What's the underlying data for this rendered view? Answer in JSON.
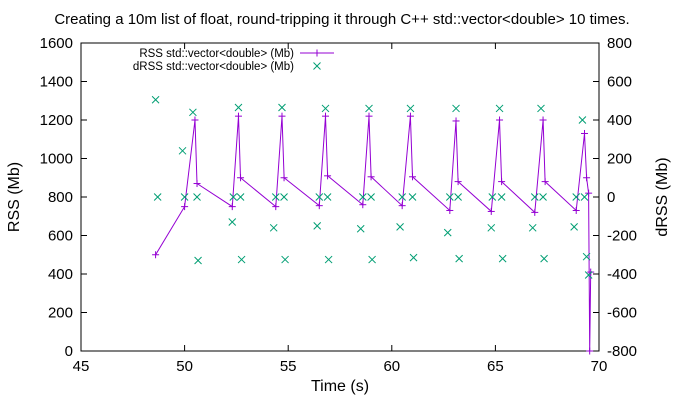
{
  "chart_data": {
    "type": "line",
    "title": "Creating a 10m list of float, round-tripping it through C++ std::vector<double> 10 times.",
    "xlabel": "Time (s)",
    "ylabel": "RSS (Mb)",
    "y2label": "dRSS (Mb)",
    "xlim": [
      45,
      70
    ],
    "ylim": [
      0,
      1600
    ],
    "y2lim": [
      -800,
      800
    ],
    "xticks": [
      "45",
      "50",
      "55",
      "60",
      "65",
      "70"
    ],
    "yticks": [
      "0",
      "200",
      "400",
      "600",
      "800",
      "1000",
      "1200",
      "1400",
      "1600"
    ],
    "y2ticks": [
      "-800",
      "-600",
      "-400",
      "-200",
      "0",
      "200",
      "400",
      "600",
      "800"
    ],
    "grid": false,
    "legend_position": "top-center",
    "series": [
      {
        "name": "RSS std::vector<double> (Mb)",
        "axis": "y",
        "style": "linespoints",
        "marker": "plus",
        "color": "#9400d3",
        "x": [
          48.6,
          50.0,
          50.5,
          50.6,
          52.3,
          52.6,
          52.7,
          54.4,
          54.7,
          54.8,
          56.5,
          56.8,
          56.9,
          58.6,
          58.9,
          59.0,
          60.5,
          60.9,
          61.0,
          62.8,
          63.1,
          63.2,
          64.8,
          65.2,
          65.3,
          66.9,
          67.3,
          67.4,
          68.9,
          69.3,
          69.4,
          69.5,
          69.55,
          69.6
        ],
        "y": [
          500,
          750,
          1200,
          870,
          750,
          1220,
          900,
          750,
          1220,
          900,
          755,
          1220,
          910,
          760,
          1220,
          905,
          755,
          1220,
          905,
          730,
          1195,
          880,
          725,
          1200,
          880,
          720,
          1200,
          880,
          730,
          1130,
          900,
          820,
          0,
          410
        ]
      },
      {
        "name": "dRSS std::vector<double> (Mb)",
        "axis": "y2",
        "style": "points",
        "marker": "cross",
        "color": "#009e73",
        "x": [
          48.6,
          48.7,
          49.9,
          50.0,
          50.4,
          50.6,
          50.65,
          52.3,
          52.35,
          52.6,
          52.7,
          52.75,
          54.3,
          54.4,
          54.7,
          54.8,
          54.85,
          56.4,
          56.5,
          56.8,
          56.9,
          56.95,
          58.5,
          58.6,
          58.9,
          59.0,
          59.05,
          60.4,
          60.5,
          60.9,
          61.0,
          61.05,
          62.7,
          62.8,
          63.1,
          63.2,
          63.25,
          64.8,
          64.85,
          65.2,
          65.3,
          65.35,
          66.8,
          66.9,
          67.2,
          67.3,
          67.35,
          68.8,
          68.9,
          69.2,
          69.3,
          69.4,
          69.5
        ],
        "y": [
          505,
          0,
          240,
          0,
          440,
          0,
          -330,
          -130,
          0,
          465,
          0,
          -325,
          -160,
          0,
          465,
          0,
          -325,
          -150,
          0,
          460,
          0,
          -325,
          -165,
          0,
          460,
          0,
          -325,
          -155,
          0,
          460,
          0,
          -315,
          -185,
          0,
          460,
          0,
          -320,
          -160,
          0,
          460,
          0,
          -320,
          -160,
          0,
          460,
          0,
          -320,
          -155,
          0,
          400,
          0,
          -310,
          -405
        ]
      }
    ]
  }
}
